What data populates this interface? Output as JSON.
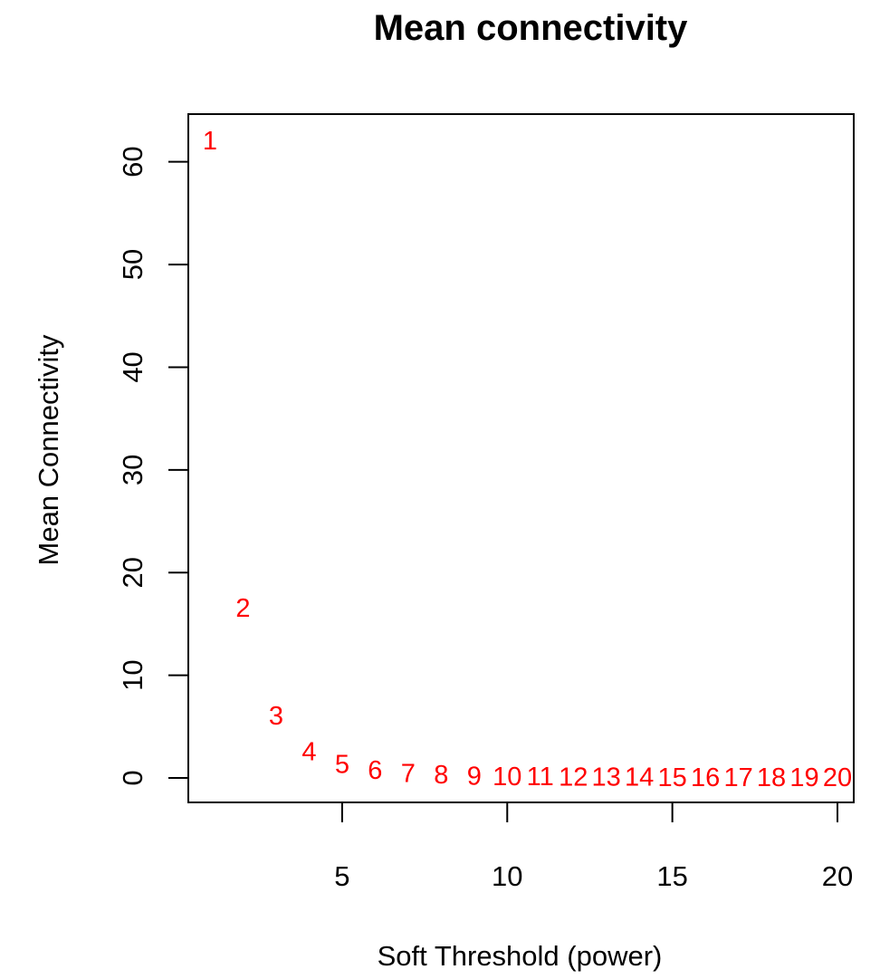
{
  "chart_data": {
    "type": "scatter",
    "title": "Mean connectivity",
    "xlabel": "Soft Threshold (power)",
    "ylabel": "Mean Connectivity",
    "xlim": [
      1,
      20
    ],
    "ylim": [
      0,
      62
    ],
    "x_ticks": [
      5,
      10,
      15,
      20
    ],
    "y_ticks": [
      0,
      10,
      20,
      30,
      40,
      50,
      60
    ],
    "grid": false,
    "marker": "text-label",
    "point_color": "#ff0000",
    "points": [
      {
        "x": 1,
        "y": 62.0,
        "label": "1"
      },
      {
        "x": 2,
        "y": 16.5,
        "label": "2"
      },
      {
        "x": 3,
        "y": 6.0,
        "label": "3"
      },
      {
        "x": 4,
        "y": 2.5,
        "label": "4"
      },
      {
        "x": 5,
        "y": 1.3,
        "label": "5"
      },
      {
        "x": 6,
        "y": 0.7,
        "label": "6"
      },
      {
        "x": 7,
        "y": 0.4,
        "label": "7"
      },
      {
        "x": 8,
        "y": 0.25,
        "label": "8"
      },
      {
        "x": 9,
        "y": 0.15,
        "label": "9"
      },
      {
        "x": 10,
        "y": 0.1,
        "label": "10"
      },
      {
        "x": 11,
        "y": 0.07,
        "label": "11"
      },
      {
        "x": 12,
        "y": 0.05,
        "label": "12"
      },
      {
        "x": 13,
        "y": 0.04,
        "label": "13"
      },
      {
        "x": 14,
        "y": 0.03,
        "label": "14"
      },
      {
        "x": 15,
        "y": 0.02,
        "label": "15"
      },
      {
        "x": 16,
        "y": 0.02,
        "label": "16"
      },
      {
        "x": 17,
        "y": 0.01,
        "label": "17"
      },
      {
        "x": 18,
        "y": 0.01,
        "label": "18"
      },
      {
        "x": 19,
        "y": 0.01,
        "label": "19"
      },
      {
        "x": 20,
        "y": 0.01,
        "label": "20"
      }
    ]
  }
}
